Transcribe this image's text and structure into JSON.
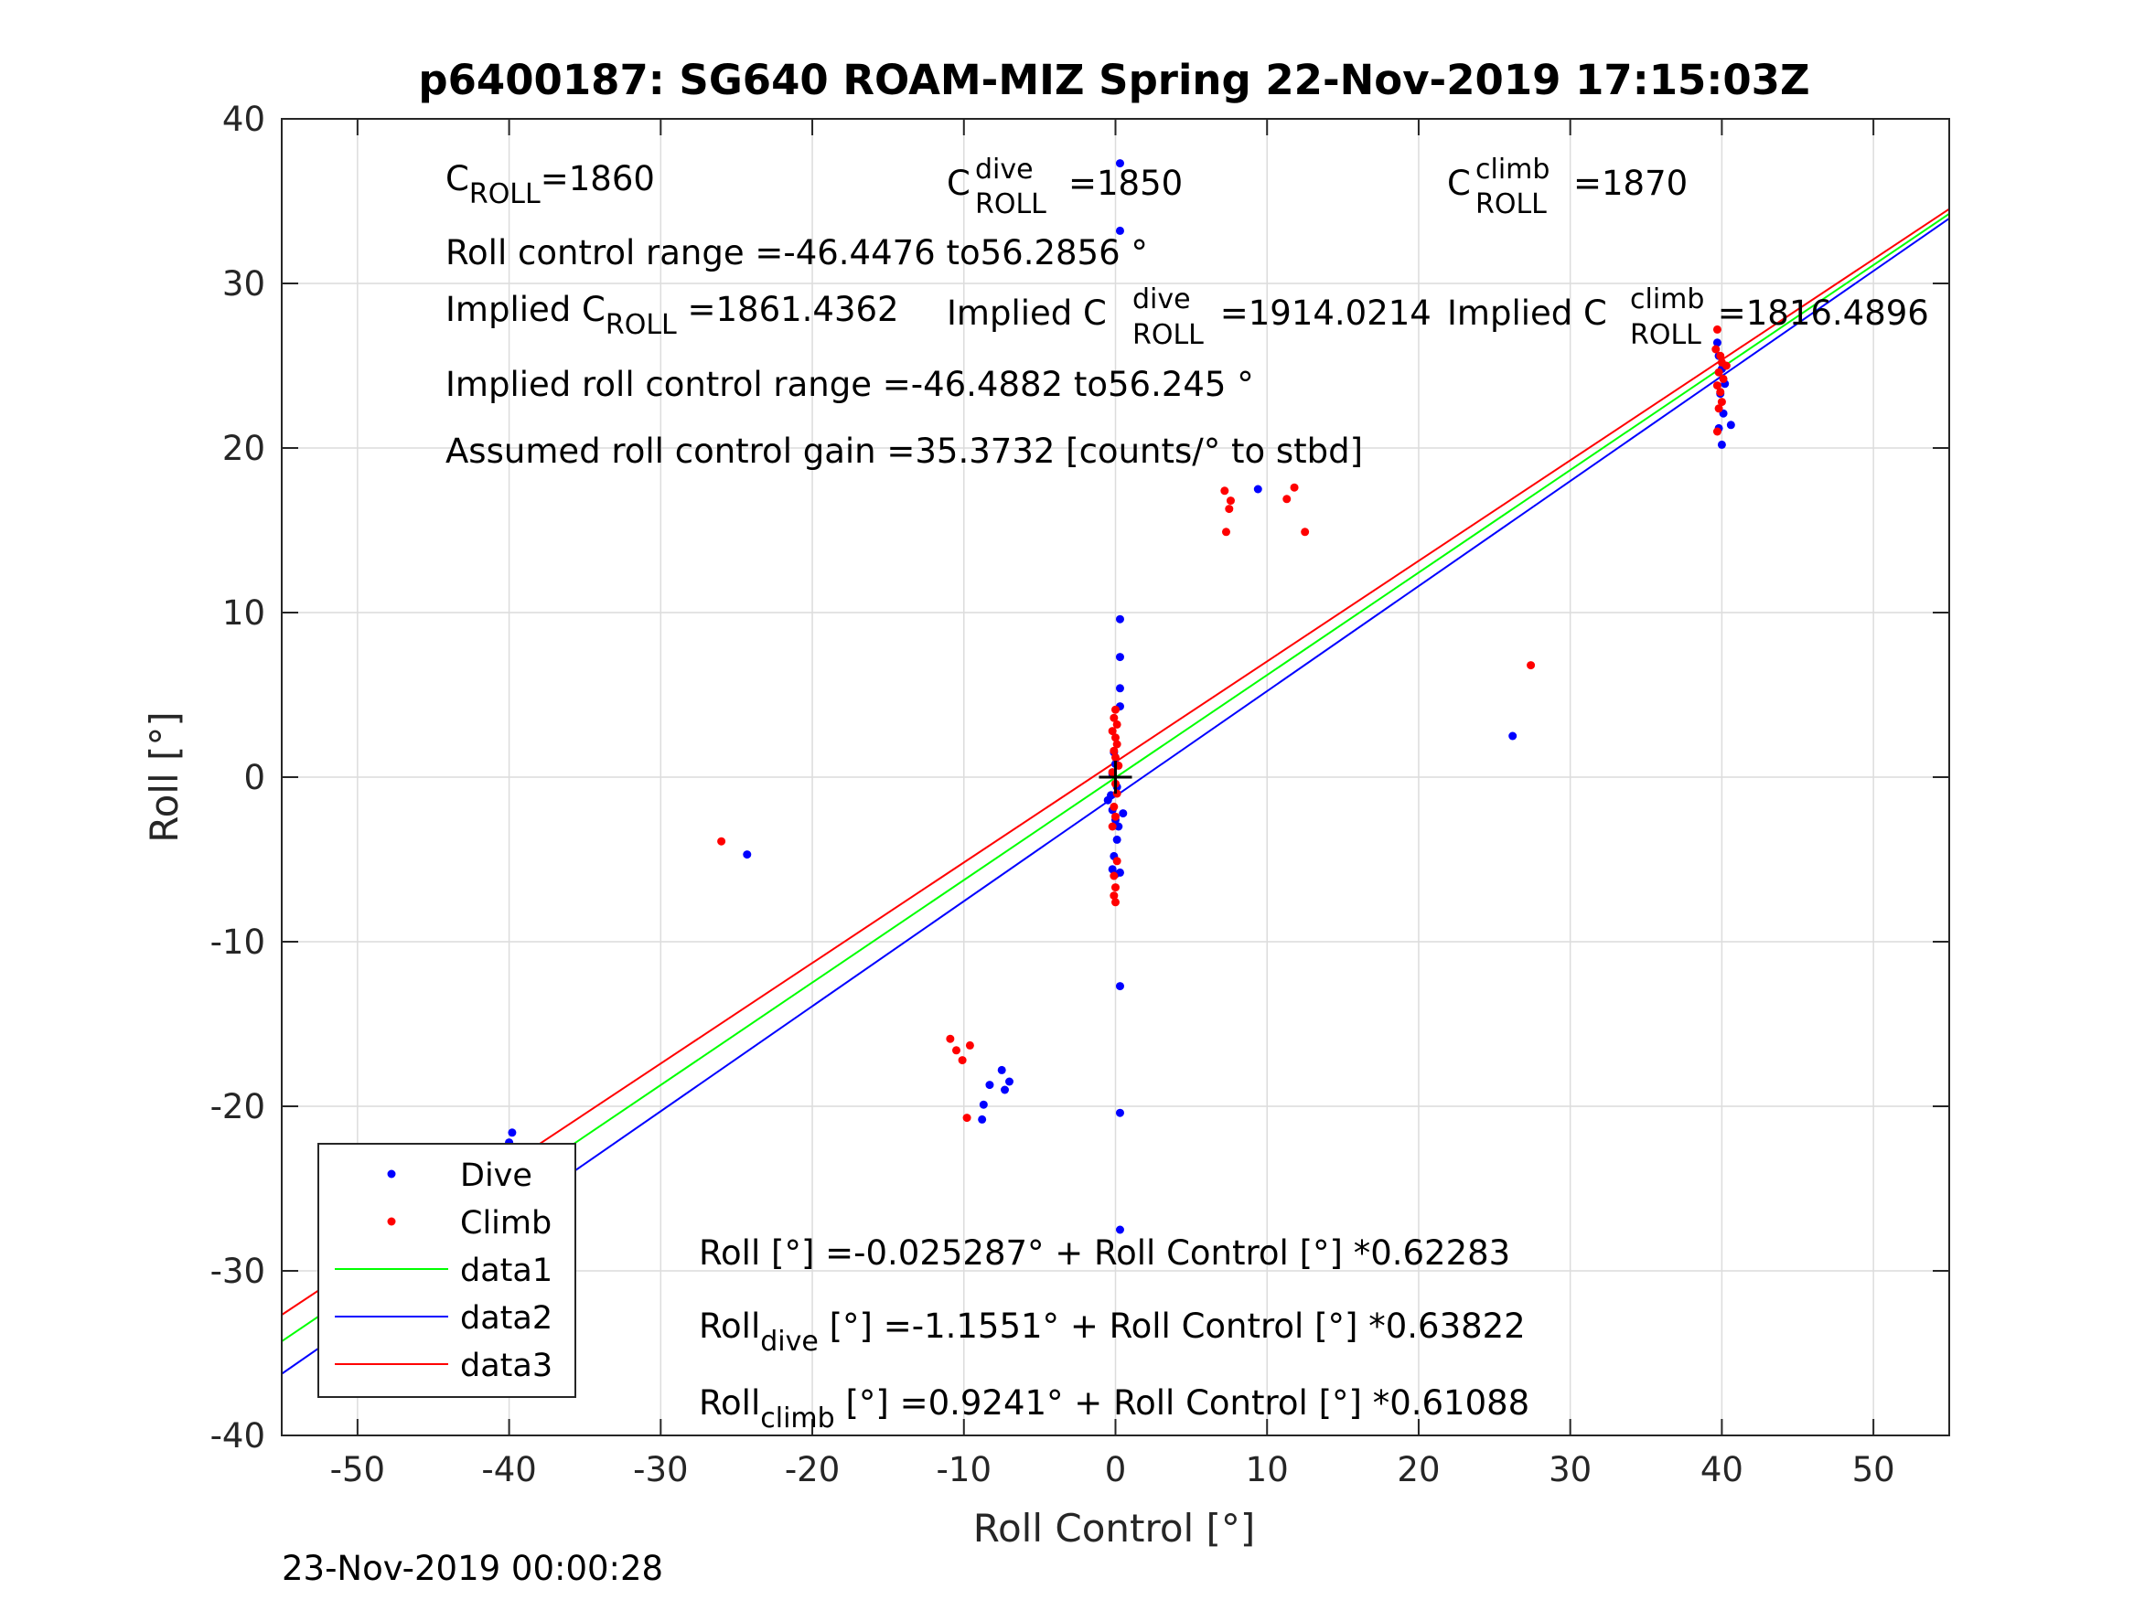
{
  "chart_data": {
    "type": "scatter",
    "title": "p6400187: SG640 ROAM-MIZ Spring 22-Nov-2019 17:15:03Z",
    "xlabel": "Roll Control [°]",
    "ylabel": "Roll [°]",
    "xlim": [
      -55,
      55
    ],
    "ylim": [
      -40,
      40
    ],
    "xticks": [
      -50,
      -40,
      -30,
      -20,
      -10,
      0,
      10,
      20,
      30,
      40,
      50
    ],
    "yticks": [
      -40,
      -30,
      -20,
      -10,
      0,
      10,
      20,
      30,
      40
    ],
    "xtick_labels": [
      "-50",
      "-40",
      "-30",
      "-20",
      "-10",
      "0",
      "10",
      "20",
      "30",
      "40",
      "50"
    ],
    "ytick_labels": [
      "-40",
      "-30",
      "-20",
      "-10",
      "0",
      "10",
      "20",
      "30",
      "40"
    ],
    "grid": true,
    "legend_position": "bottom-left",
    "colors": {
      "dive": "#0000ff",
      "climb": "#ff0000",
      "data1": "#00ff00",
      "data2": "#0000ff",
      "data3": "#ff0000"
    },
    "series": [
      {
        "name": "Dive",
        "kind": "points",
        "points": [
          [
            0.3,
            37.3
          ],
          [
            0.3,
            33.2
          ],
          [
            0.3,
            9.6
          ],
          [
            0.3,
            7.3
          ],
          [
            0.3,
            5.4
          ],
          [
            0.3,
            4.3
          ],
          [
            0.3,
            -12.7
          ],
          [
            0.3,
            -20.4
          ],
          [
            0.3,
            -27.5
          ],
          [
            -0.1,
            1.5
          ],
          [
            0.0,
            0.8
          ],
          [
            -0.2,
            0.2
          ],
          [
            0.1,
            -0.6
          ],
          [
            -0.3,
            -1.1
          ],
          [
            -0.5,
            -1.4
          ],
          [
            -0.2,
            -2.0
          ],
          [
            0.0,
            -2.6
          ],
          [
            0.2,
            -3.0
          ],
          [
            0.1,
            -3.8
          ],
          [
            -0.1,
            -4.8
          ],
          [
            -0.2,
            -5.6
          ],
          [
            0.0,
            -5.9
          ],
          [
            0.3,
            -5.8
          ],
          [
            0.5,
            -2.2
          ],
          [
            26.2,
            2.5
          ],
          [
            9.4,
            17.5
          ],
          [
            -24.3,
            -4.7
          ],
          [
            -7.5,
            -17.8
          ],
          [
            -7.0,
            -18.5
          ],
          [
            -7.3,
            -19.0
          ],
          [
            -8.3,
            -18.7
          ],
          [
            -8.7,
            -19.9
          ],
          [
            -8.8,
            -20.8
          ],
          [
            -39.8,
            -21.6
          ],
          [
            -40.0,
            -22.2
          ],
          [
            -40.1,
            -23.0
          ],
          [
            -40.0,
            -24.1
          ],
          [
            -39.9,
            -25.4
          ],
          [
            -40.1,
            -26.2
          ],
          [
            -39.8,
            -26.9
          ],
          [
            -40.2,
            -27.3
          ],
          [
            -39.9,
            -25.9
          ],
          [
            39.7,
            26.4
          ],
          [
            39.8,
            25.6
          ],
          [
            40.0,
            24.8
          ],
          [
            40.2,
            23.9
          ],
          [
            39.9,
            23.3
          ],
          [
            40.1,
            22.1
          ],
          [
            39.8,
            21.2
          ],
          [
            40.6,
            21.4
          ],
          [
            40.0,
            20.2
          ]
        ]
      },
      {
        "name": "Climb",
        "kind": "points",
        "points": [
          [
            0.0,
            4.1
          ],
          [
            -0.1,
            3.6
          ],
          [
            0.1,
            3.2
          ],
          [
            -0.2,
            2.8
          ],
          [
            0.0,
            2.4
          ],
          [
            0.1,
            2.0
          ],
          [
            -0.1,
            1.6
          ],
          [
            0.0,
            1.2
          ],
          [
            0.2,
            0.7
          ],
          [
            -0.2,
            0.3
          ],
          [
            0.0,
            -0.4
          ],
          [
            0.1,
            -1.0
          ],
          [
            -0.1,
            -1.8
          ],
          [
            0.0,
            -2.4
          ],
          [
            -0.2,
            -3.0
          ],
          [
            0.1,
            -5.1
          ],
          [
            -0.1,
            -6.0
          ],
          [
            0.0,
            -6.7
          ],
          [
            -0.1,
            -7.2
          ],
          [
            0.0,
            -7.6
          ],
          [
            7.2,
            17.4
          ],
          [
            7.6,
            16.8
          ],
          [
            7.5,
            16.3
          ],
          [
            7.3,
            14.9
          ],
          [
            11.8,
            17.6
          ],
          [
            11.3,
            16.9
          ],
          [
            12.5,
            14.9
          ],
          [
            27.4,
            6.8
          ],
          [
            -26.0,
            -3.9
          ],
          [
            -10.9,
            -15.9
          ],
          [
            -10.5,
            -16.6
          ],
          [
            -10.1,
            -17.2
          ],
          [
            -9.6,
            -16.3
          ],
          [
            -9.8,
            -20.7
          ],
          [
            -39.9,
            -22.6
          ],
          [
            -40.0,
            -23.2
          ],
          [
            -39.8,
            -23.8
          ],
          [
            -40.1,
            -24.3
          ],
          [
            -39.9,
            -24.7
          ],
          [
            -40.0,
            -25.2
          ],
          [
            -40.0,
            -29.2
          ],
          [
            39.7,
            27.2
          ],
          [
            39.6,
            26.0
          ],
          [
            39.9,
            25.6
          ],
          [
            40.0,
            25.2
          ],
          [
            40.3,
            25.0
          ],
          [
            39.8,
            24.6
          ],
          [
            40.1,
            24.2
          ],
          [
            39.7,
            23.8
          ],
          [
            39.9,
            23.4
          ],
          [
            40.0,
            22.8
          ],
          [
            39.8,
            22.4
          ],
          [
            39.7,
            21.0
          ]
        ]
      },
      {
        "name": "data1",
        "kind": "line",
        "intercept": -0.025287,
        "slope": 0.62283
      },
      {
        "name": "data2",
        "kind": "line",
        "intercept": -1.1551,
        "slope": 0.63822
      },
      {
        "name": "data3",
        "kind": "line",
        "intercept": 0.9241,
        "slope": 0.61088
      }
    ],
    "center_marker": [
      0,
      0
    ],
    "annotations": {
      "c_roll_base": "C",
      "c_roll_sub": "ROLL",
      "c_roll_val": "=1860",
      "c_dive_base": "C",
      "c_dive_sup": "dive",
      "c_dive_sub": "ROLL",
      "c_dive_val": "=1850",
      "c_climb_base": "C",
      "c_climb_sup": "climb",
      "c_climb_sub": "ROLL",
      "c_climb_val": "=1870",
      "roll_range": "Roll control range =-46.4476 to56.2856 °",
      "implied_c_base": "Implied C",
      "implied_c_sub": "ROLL",
      "implied_c_val": " =1861.4362",
      "implied_dive_base": "Implied C",
      "implied_dive_sup": "dive",
      "implied_dive_sub": "ROLL",
      "implied_dive_val": " =1914.0214",
      "implied_climb_base": "Implied C",
      "implied_climb_sup": "climb",
      "implied_climb_sub": "ROLL",
      "implied_climb_val": " =1816.4896",
      "implied_range": "Implied roll control range =-46.4882 to56.245 °",
      "gain": "Assumed roll control gain =35.3732 [counts/° to stbd]",
      "fit_all": "Roll [°] =-0.025287° + Roll Control [°] *0.62283",
      "fit_dive_base": "Roll",
      "fit_dive_sub": "dive",
      "fit_dive_rest": " [°] =-1.1551° + Roll Control [°] *0.63822",
      "fit_climb_base": "Roll",
      "fit_climb_sub": "climb",
      "fit_climb_rest": " [°] =0.9241° + Roll Control [°] *0.61088"
    },
    "footer": "23-Nov-2019 00:00:28"
  }
}
